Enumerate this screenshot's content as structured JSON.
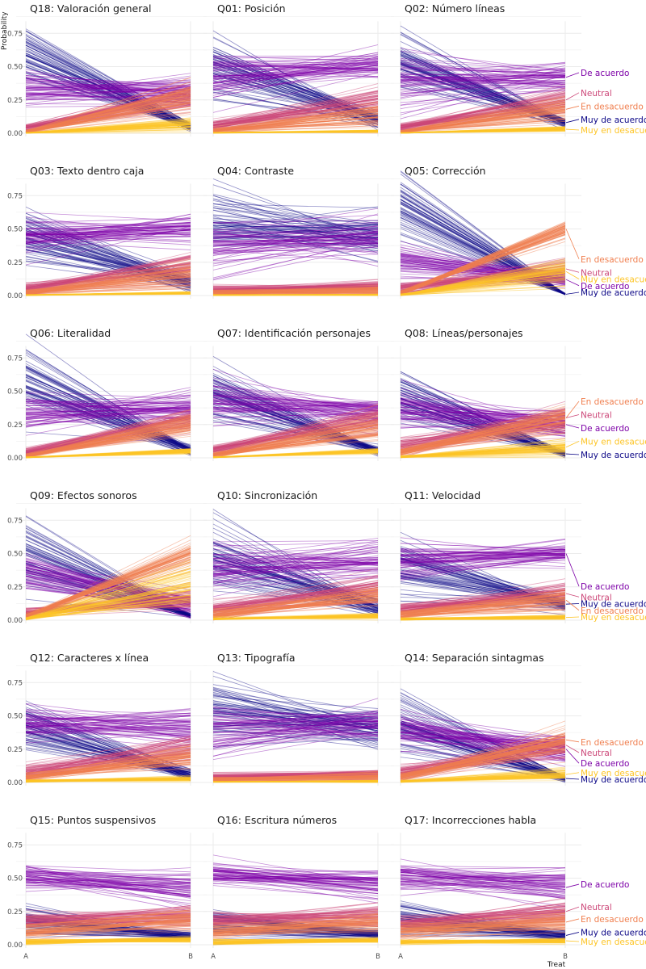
{
  "figure": {
    "ylabel": "Probability",
    "xlabel": "Treat",
    "colors": {
      "Muy de acuerdo": "#0d0887",
      "De acuerdo": "#7e03a8",
      "Neutral": "#cc4778",
      "En desacuerdo": "#f07f4f",
      "Muy en desacuerdo": "#fdc527"
    }
  },
  "chart_data": [
    {
      "title": "Q18: Valoración general",
      "type": "line",
      "x": [
        "A",
        "B"
      ],
      "ylim": [
        0,
        1
      ],
      "yticks": [
        "0.00",
        "0.25",
        "0.50",
        "0.75"
      ],
      "series": [
        {
          "name": "Muy de acuerdo",
          "A": 0.62,
          "B": 0.05,
          "Asd": 0.1,
          "Bsd": 0.015
        },
        {
          "name": "De acuerdo",
          "A": 0.33,
          "B": 0.3,
          "Asd": 0.07,
          "Bsd": 0.06
        },
        {
          "name": "Neutral",
          "A": 0.04,
          "B": 0.28,
          "Asd": 0.015,
          "Bsd": 0.06
        },
        {
          "name": "En desacuerdo",
          "A": 0.01,
          "B": 0.28,
          "Asd": 0.005,
          "Bsd": 0.06
        },
        {
          "name": "Muy en desacuerdo",
          "A": 0.002,
          "B": 0.07,
          "Asd": 0.002,
          "Bsd": 0.02
        }
      ]
    },
    {
      "title": "Q01: Posición",
      "type": "line",
      "x": [
        "A",
        "B"
      ],
      "ylim": [
        0,
        1
      ],
      "yticks": [
        "0.00",
        "0.25",
        "0.50",
        "0.75"
      ],
      "series": [
        {
          "name": "Muy de acuerdo",
          "A": 0.5,
          "B": 0.1,
          "Asd": 0.12,
          "Bsd": 0.03
        },
        {
          "name": "De acuerdo",
          "A": 0.42,
          "B": 0.5,
          "Asd": 0.1,
          "Bsd": 0.05
        },
        {
          "name": "Neutral",
          "A": 0.06,
          "B": 0.25,
          "Asd": 0.02,
          "Bsd": 0.05
        },
        {
          "name": "En desacuerdo",
          "A": 0.02,
          "B": 0.14,
          "Asd": 0.01,
          "Bsd": 0.04
        },
        {
          "name": "Muy en desacuerdo",
          "A": 0.003,
          "B": 0.015,
          "Asd": 0.002,
          "Bsd": 0.005
        }
      ]
    },
    {
      "title": "Q02: Número líneas",
      "type": "line",
      "x": [
        "A",
        "B"
      ],
      "ylim": [
        0,
        1
      ],
      "yticks": [
        "0.00",
        "0.25",
        "0.50",
        "0.75"
      ],
      "labels": true,
      "series": [
        {
          "name": "Muy de acuerdo",
          "A": 0.55,
          "B": 0.08,
          "Asd": 0.12,
          "Bsd": 0.02,
          "ly": 0.08
        },
        {
          "name": "De acuerdo",
          "A": 0.4,
          "B": 0.42,
          "Asd": 0.1,
          "Bsd": 0.06,
          "ly": 0.43
        },
        {
          "name": "Neutral",
          "A": 0.04,
          "B": 0.25,
          "Asd": 0.015,
          "Bsd": 0.05,
          "ly": 0.28
        },
        {
          "name": "En desacuerdo",
          "A": 0.01,
          "B": 0.18,
          "Asd": 0.005,
          "Bsd": 0.05,
          "ly": 0.18
        },
        {
          "name": "Muy en desacuerdo",
          "A": 0.002,
          "B": 0.03,
          "Asd": 0.002,
          "Bsd": 0.01,
          "ly": 0.0
        }
      ]
    },
    {
      "title": "Q03: Texto dentro caja",
      "type": "line",
      "x": [
        "A",
        "B"
      ],
      "ylim": [
        0,
        1
      ],
      "yticks": [
        "0.00",
        "0.25",
        "0.50",
        "0.75"
      ],
      "series": [
        {
          "name": "Muy de acuerdo",
          "A": 0.45,
          "B": 0.1,
          "Asd": 0.1,
          "Bsd": 0.03
        },
        {
          "name": "De acuerdo",
          "A": 0.44,
          "B": 0.5,
          "Asd": 0.07,
          "Bsd": 0.05
        },
        {
          "name": "Neutral",
          "A": 0.06,
          "B": 0.22,
          "Asd": 0.02,
          "Bsd": 0.05
        },
        {
          "name": "En desacuerdo",
          "A": 0.02,
          "B": 0.16,
          "Asd": 0.01,
          "Bsd": 0.05
        },
        {
          "name": "Muy en desacuerdo",
          "A": 0.003,
          "B": 0.02,
          "Asd": 0.002,
          "Bsd": 0.005
        }
      ]
    },
    {
      "title": "Q04: Contraste",
      "type": "line",
      "x": [
        "A",
        "B"
      ],
      "ylim": [
        0,
        1
      ],
      "yticks": [
        "0.00",
        "0.25",
        "0.50",
        "0.75"
      ],
      "series": [
        {
          "name": "Muy de acuerdo",
          "A": 0.55,
          "B": 0.45,
          "Asd": 0.12,
          "Bsd": 0.08
        },
        {
          "name": "De acuerdo",
          "A": 0.38,
          "B": 0.42,
          "Asd": 0.1,
          "Bsd": 0.08
        },
        {
          "name": "Neutral",
          "A": 0.04,
          "B": 0.07,
          "Asd": 0.015,
          "Bsd": 0.02
        },
        {
          "name": "En desacuerdo",
          "A": 0.02,
          "B": 0.04,
          "Asd": 0.01,
          "Bsd": 0.015
        },
        {
          "name": "Muy en desacuerdo",
          "A": 0.003,
          "B": 0.006,
          "Asd": 0.002,
          "Bsd": 0.003
        }
      ]
    },
    {
      "title": "Q05: Corrección",
      "type": "line",
      "x": [
        "A",
        "B"
      ],
      "ylim": [
        0,
        1
      ],
      "yticks": [
        "0.00",
        "0.25",
        "0.50",
        "0.75"
      ],
      "labels": true,
      "series": [
        {
          "name": "Muy de acuerdo",
          "A": 0.65,
          "B": 0.01,
          "Asd": 0.1,
          "Bsd": 0.003,
          "ly": 0.0
        },
        {
          "name": "De acuerdo",
          "A": 0.26,
          "B": 0.12,
          "Asd": 0.07,
          "Bsd": 0.03,
          "ly": 0.05
        },
        {
          "name": "Neutral",
          "A": 0.05,
          "B": 0.2,
          "Asd": 0.02,
          "Bsd": 0.04,
          "ly": 0.15
        },
        {
          "name": "En desacuerdo",
          "A": 0.02,
          "B": 0.5,
          "Asd": 0.01,
          "Bsd": 0.04,
          "ly": 0.25
        },
        {
          "name": "Muy en desacuerdo",
          "A": 0.005,
          "B": 0.18,
          "Asd": 0.003,
          "Bsd": 0.05,
          "ly": 0.1
        }
      ]
    },
    {
      "title": "Q06: Literalidad",
      "type": "line",
      "x": [
        "A",
        "B"
      ],
      "ylim": [
        0,
        1
      ],
      "yticks": [
        "0.00",
        "0.25",
        "0.50",
        "0.75"
      ],
      "series": [
        {
          "name": "Muy de acuerdo",
          "A": 0.6,
          "B": 0.06,
          "Asd": 0.12,
          "Bsd": 0.02
        },
        {
          "name": "De acuerdo",
          "A": 0.33,
          "B": 0.38,
          "Asd": 0.07,
          "Bsd": 0.06
        },
        {
          "name": "Neutral",
          "A": 0.04,
          "B": 0.3,
          "Asd": 0.015,
          "Bsd": 0.04
        },
        {
          "name": "En desacuerdo",
          "A": 0.015,
          "B": 0.25,
          "Asd": 0.008,
          "Bsd": 0.04
        },
        {
          "name": "Muy en desacuerdo",
          "A": 0.003,
          "B": 0.05,
          "Asd": 0.002,
          "Bsd": 0.01
        }
      ]
    },
    {
      "title": "Q07: Identificación personajes",
      "type": "line",
      "x": [
        "A",
        "B"
      ],
      "ylim": [
        0,
        1
      ],
      "yticks": [
        "0.00",
        "0.25",
        "0.50",
        "0.75"
      ],
      "series": [
        {
          "name": "Muy de acuerdo",
          "A": 0.48,
          "B": 0.05,
          "Asd": 0.1,
          "Bsd": 0.015
        },
        {
          "name": "De acuerdo",
          "A": 0.4,
          "B": 0.35,
          "Asd": 0.08,
          "Bsd": 0.06
        },
        {
          "name": "Neutral",
          "A": 0.06,
          "B": 0.3,
          "Asd": 0.02,
          "Bsd": 0.05
        },
        {
          "name": "En desacuerdo",
          "A": 0.02,
          "B": 0.22,
          "Asd": 0.01,
          "Bsd": 0.05
        },
        {
          "name": "Muy en desacuerdo",
          "A": 0.004,
          "B": 0.05,
          "Asd": 0.002,
          "Bsd": 0.01
        }
      ]
    },
    {
      "title": "Q08: Líneas/personajes",
      "type": "line",
      "x": [
        "A",
        "B"
      ],
      "ylim": [
        0,
        1
      ],
      "yticks": [
        "0.00",
        "0.25",
        "0.50",
        "0.75"
      ],
      "labels": true,
      "series": [
        {
          "name": "Muy de acuerdo",
          "A": 0.48,
          "B": 0.03,
          "Asd": 0.1,
          "Bsd": 0.01,
          "ly": 0.0
        },
        {
          "name": "De acuerdo",
          "A": 0.38,
          "B": 0.25,
          "Asd": 0.08,
          "Bsd": 0.05,
          "ly": 0.2
        },
        {
          "name": "Neutral",
          "A": 0.08,
          "B": 0.3,
          "Asd": 0.03,
          "Bsd": 0.05,
          "ly": 0.3
        },
        {
          "name": "En desacuerdo",
          "A": 0.04,
          "B": 0.3,
          "Asd": 0.015,
          "Bsd": 0.06,
          "ly": 0.4
        },
        {
          "name": "Muy en desacuerdo",
          "A": 0.008,
          "B": 0.08,
          "Asd": 0.004,
          "Bsd": 0.03,
          "ly": 0.1
        }
      ]
    },
    {
      "title": "Q09: Efectos sonoros",
      "type": "line",
      "x": [
        "A",
        "B"
      ],
      "ylim": [
        0,
        1
      ],
      "yticks": [
        "0.00",
        "0.25",
        "0.50",
        "0.75"
      ],
      "series": [
        {
          "name": "Muy de acuerdo",
          "A": 0.5,
          "B": 0.03,
          "Asd": 0.12,
          "Bsd": 0.01
        },
        {
          "name": "De acuerdo",
          "A": 0.38,
          "B": 0.12,
          "Asd": 0.07,
          "Bsd": 0.04
        },
        {
          "name": "Neutral",
          "A": 0.06,
          "B": 0.15,
          "Asd": 0.02,
          "Bsd": 0.04
        },
        {
          "name": "En desacuerdo",
          "A": 0.03,
          "B": 0.48,
          "Asd": 0.01,
          "Bsd": 0.06
        },
        {
          "name": "Muy en desacuerdo",
          "A": 0.01,
          "B": 0.28,
          "Asd": 0.005,
          "Bsd": 0.08
        }
      ]
    },
    {
      "title": "Q10: Sincronización",
      "type": "line",
      "x": [
        "A",
        "B"
      ],
      "ylim": [
        0,
        1
      ],
      "yticks": [
        "0.00",
        "0.25",
        "0.50",
        "0.75"
      ],
      "series": [
        {
          "name": "Muy de acuerdo",
          "A": 0.45,
          "B": 0.1,
          "Asd": 0.12,
          "Bsd": 0.03
        },
        {
          "name": "De acuerdo",
          "A": 0.4,
          "B": 0.45,
          "Asd": 0.08,
          "Bsd": 0.07
        },
        {
          "name": "Neutral",
          "A": 0.08,
          "B": 0.25,
          "Asd": 0.03,
          "Bsd": 0.05
        },
        {
          "name": "En desacuerdo",
          "A": 0.04,
          "B": 0.18,
          "Asd": 0.02,
          "Bsd": 0.04
        },
        {
          "name": "Muy en desacuerdo",
          "A": 0.01,
          "B": 0.03,
          "Asd": 0.004,
          "Bsd": 0.01
        }
      ]
    },
    {
      "title": "Q11: Velocidad",
      "type": "line",
      "x": [
        "A",
        "B"
      ],
      "ylim": [
        0,
        1
      ],
      "yticks": [
        "0.00",
        "0.25",
        "0.50",
        "0.75"
      ],
      "labels": true,
      "series": [
        {
          "name": "Muy de acuerdo",
          "A": 0.42,
          "B": 0.12,
          "Asd": 0.1,
          "Bsd": 0.03,
          "ly": 0.1
        },
        {
          "name": "De acuerdo",
          "A": 0.44,
          "B": 0.5,
          "Asd": 0.07,
          "Bsd": 0.04,
          "ly": 0.23
        },
        {
          "name": "Neutral",
          "A": 0.08,
          "B": 0.2,
          "Asd": 0.02,
          "Bsd": 0.05,
          "ly": 0.15
        },
        {
          "name": "En desacuerdo",
          "A": 0.04,
          "B": 0.15,
          "Asd": 0.015,
          "Bsd": 0.04,
          "ly": 0.05
        },
        {
          "name": "Muy en desacuerdo",
          "A": 0.008,
          "B": 0.02,
          "Asd": 0.004,
          "Bsd": 0.008,
          "ly": 0.0
        }
      ]
    },
    {
      "title": "Q12: Caracteres x línea",
      "type": "line",
      "x": [
        "A",
        "B"
      ],
      "ylim": [
        0,
        1
      ],
      "yticks": [
        "0.00",
        "0.25",
        "0.50",
        "0.75"
      ],
      "series": [
        {
          "name": "Muy de acuerdo",
          "A": 0.42,
          "B": 0.06,
          "Asd": 0.1,
          "Bsd": 0.02
        },
        {
          "name": "De acuerdo",
          "A": 0.45,
          "B": 0.42,
          "Asd": 0.06,
          "Bsd": 0.07
        },
        {
          "name": "Neutral",
          "A": 0.08,
          "B": 0.26,
          "Asd": 0.03,
          "Bsd": 0.05
        },
        {
          "name": "En desacuerdo",
          "A": 0.04,
          "B": 0.2,
          "Asd": 0.015,
          "Bsd": 0.04
        },
        {
          "name": "Muy en desacuerdo",
          "A": 0.01,
          "B": 0.03,
          "Asd": 0.005,
          "Bsd": 0.01
        }
      ]
    },
    {
      "title": "Q13: Tipografía",
      "type": "line",
      "x": [
        "A",
        "B"
      ],
      "ylim": [
        0,
        1
      ],
      "yticks": [
        "0.00",
        "0.25",
        "0.50",
        "0.75"
      ],
      "series": [
        {
          "name": "Muy de acuerdo",
          "A": 0.55,
          "B": 0.4,
          "Asd": 0.12,
          "Bsd": 0.08
        },
        {
          "name": "De acuerdo",
          "A": 0.38,
          "B": 0.45,
          "Asd": 0.1,
          "Bsd": 0.06
        },
        {
          "name": "Neutral",
          "A": 0.04,
          "B": 0.06,
          "Asd": 0.015,
          "Bsd": 0.02
        },
        {
          "name": "En desacuerdo",
          "A": 0.02,
          "B": 0.04,
          "Asd": 0.01,
          "Bsd": 0.015
        },
        {
          "name": "Muy en desacuerdo",
          "A": 0.004,
          "B": 0.008,
          "Asd": 0.002,
          "Bsd": 0.004
        }
      ]
    },
    {
      "title": "Q14: Separación sintagmas",
      "type": "line",
      "x": [
        "A",
        "B"
      ],
      "ylim": [
        0,
        1
      ],
      "yticks": [
        "0.00",
        "0.25",
        "0.50",
        "0.75"
      ],
      "labels": true,
      "series": [
        {
          "name": "Muy de acuerdo",
          "A": 0.45,
          "B": 0.03,
          "Asd": 0.12,
          "Bsd": 0.01,
          "ly": 0.0
        },
        {
          "name": "De acuerdo",
          "A": 0.4,
          "B": 0.25,
          "Asd": 0.07,
          "Bsd": 0.05,
          "ly": 0.12
        },
        {
          "name": "Neutral",
          "A": 0.08,
          "B": 0.28,
          "Asd": 0.03,
          "Bsd": 0.05,
          "ly": 0.2
        },
        {
          "name": "En desacuerdo",
          "A": 0.04,
          "B": 0.32,
          "Asd": 0.015,
          "Bsd": 0.05,
          "ly": 0.28
        },
        {
          "name": "Muy en desacuerdo",
          "A": 0.008,
          "B": 0.06,
          "Asd": 0.004,
          "Bsd": 0.02,
          "ly": 0.05
        }
      ]
    },
    {
      "title": "Q15: Puntos suspensivos",
      "type": "line",
      "x": [
        "A",
        "B"
      ],
      "ylim": [
        0,
        1
      ],
      "yticks": [
        "0.00",
        "0.25",
        "0.50",
        "0.75"
      ],
      "series": [
        {
          "name": "Muy de acuerdo",
          "A": 0.18,
          "B": 0.06,
          "Asd": 0.06,
          "Bsd": 0.02
        },
        {
          "name": "De acuerdo",
          "A": 0.52,
          "B": 0.42,
          "Asd": 0.04,
          "Bsd": 0.06
        },
        {
          "name": "Neutral",
          "A": 0.18,
          "B": 0.22,
          "Asd": 0.03,
          "Bsd": 0.04
        },
        {
          "name": "En desacuerdo",
          "A": 0.1,
          "B": 0.18,
          "Asd": 0.03,
          "Bsd": 0.04
        },
        {
          "name": "Muy en desacuerdo",
          "A": 0.02,
          "B": 0.04,
          "Asd": 0.01,
          "Bsd": 0.01
        }
      ]
    },
    {
      "title": "Q16: Escritura números",
      "type": "line",
      "x": [
        "A",
        "B"
      ],
      "ylim": [
        0,
        1
      ],
      "yticks": [
        "0.00",
        "0.25",
        "0.50",
        "0.75"
      ],
      "series": [
        {
          "name": "Muy de acuerdo",
          "A": 0.17,
          "B": 0.07,
          "Asd": 0.06,
          "Bsd": 0.02
        },
        {
          "name": "De acuerdo",
          "A": 0.53,
          "B": 0.45,
          "Asd": 0.04,
          "Bsd": 0.06
        },
        {
          "name": "Neutral",
          "A": 0.18,
          "B": 0.22,
          "Asd": 0.03,
          "Bsd": 0.04
        },
        {
          "name": "En desacuerdo",
          "A": 0.1,
          "B": 0.17,
          "Asd": 0.03,
          "Bsd": 0.04
        },
        {
          "name": "Muy en desacuerdo",
          "A": 0.02,
          "B": 0.035,
          "Asd": 0.01,
          "Bsd": 0.01
        }
      ]
    },
    {
      "title": "Q17: Incorrecciones habla",
      "type": "line",
      "x": [
        "A",
        "B"
      ],
      "ylim": [
        0,
        1
      ],
      "yticks": [
        "0.00",
        "0.25",
        "0.50",
        "0.75"
      ],
      "labels": true,
      "series": [
        {
          "name": "Muy de acuerdo",
          "A": 0.2,
          "B": 0.07,
          "Asd": 0.07,
          "Bsd": 0.02,
          "ly": 0.07
        },
        {
          "name": "De acuerdo",
          "A": 0.52,
          "B": 0.43,
          "Asd": 0.05,
          "Bsd": 0.06,
          "ly": 0.43
        },
        {
          "name": "Neutral",
          "A": 0.16,
          "B": 0.25,
          "Asd": 0.03,
          "Bsd": 0.04,
          "ly": 0.26
        },
        {
          "name": "En desacuerdo",
          "A": 0.1,
          "B": 0.17,
          "Asd": 0.03,
          "Bsd": 0.04,
          "ly": 0.17
        },
        {
          "name": "Muy en desacuerdo",
          "A": 0.02,
          "B": 0.03,
          "Asd": 0.01,
          "Bsd": 0.01,
          "ly": 0.0
        }
      ]
    }
  ]
}
